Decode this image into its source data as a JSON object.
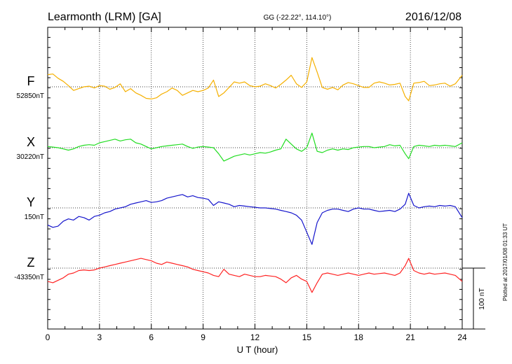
{
  "header": {
    "station": "Learmonth (LRM)  [GA]",
    "coords": "GG (-22.22°, 114.10°)",
    "date": "2016/12/08"
  },
  "footer": {
    "plotted_note": "Plotted at 2017/01/08 01:33 UT",
    "scale_label": "100 nT"
  },
  "chart_data": {
    "type": "line",
    "xlabel": "U T (hour)",
    "xlim": [
      0,
      24
    ],
    "xticks": [
      0,
      3,
      6,
      9,
      12,
      15,
      18,
      21,
      24
    ],
    "scale_nT": 100,
    "series": [
      {
        "name": "F",
        "baseline_label": "52850nT",
        "baseline_nT": 52850,
        "color": "#f5b000",
        "x": [
          0.0,
          0.3,
          0.6,
          0.9,
          1.2,
          1.5,
          1.8,
          2.1,
          2.4,
          2.7,
          3.0,
          3.3,
          3.6,
          3.9,
          4.2,
          4.5,
          4.8,
          5.1,
          5.4,
          5.7,
          6.0,
          6.3,
          6.6,
          6.9,
          7.2,
          7.5,
          7.8,
          8.1,
          8.4,
          8.7,
          9.0,
          9.3,
          9.6,
          9.9,
          10.2,
          10.5,
          10.8,
          11.1,
          11.4,
          11.7,
          12.0,
          12.3,
          12.6,
          12.9,
          13.2,
          13.5,
          13.8,
          14.1,
          14.4,
          14.7,
          15.0,
          15.3,
          15.6,
          15.9,
          16.2,
          16.5,
          16.8,
          17.1,
          17.4,
          17.7,
          18.0,
          18.3,
          18.6,
          18.9,
          19.2,
          19.5,
          19.8,
          20.1,
          20.4,
          20.7,
          20.9,
          21.2,
          21.5,
          21.8,
          22.1,
          22.4,
          22.7,
          23.0,
          23.3,
          23.6,
          24.0
        ],
        "values": [
          20,
          21,
          14,
          9,
          2,
          -6,
          -3,
          0,
          1,
          -2,
          2,
          1,
          -4,
          -1,
          5,
          -8,
          -3,
          -10,
          -14,
          -19,
          -20,
          -18,
          -12,
          -8,
          -2,
          -6,
          -14,
          -10,
          -6,
          -8,
          -6,
          -2,
          11,
          -16,
          -10,
          -1,
          8,
          6,
          8,
          2,
          0,
          1,
          5,
          2,
          -2,
          4,
          11,
          19,
          5,
          -1,
          8,
          48,
          24,
          -1,
          -4,
          -1,
          -5,
          3,
          7,
          5,
          2,
          -1,
          -1,
          6,
          8,
          6,
          3,
          4,
          6,
          -16,
          -23,
          6,
          7,
          9,
          2,
          3,
          5,
          6,
          1,
          5,
          19
        ]
      },
      {
        "name": "X",
        "baseline_label": "30220nT",
        "baseline_nT": 30220,
        "color": "#22dd22",
        "x": [
          0.0,
          0.3,
          0.6,
          0.9,
          1.2,
          1.5,
          1.8,
          2.1,
          2.4,
          2.7,
          3.0,
          3.3,
          3.6,
          3.9,
          4.2,
          4.5,
          4.8,
          5.1,
          5.4,
          5.7,
          6.0,
          6.3,
          6.6,
          6.9,
          7.2,
          7.5,
          7.8,
          8.1,
          8.4,
          8.7,
          9.0,
          9.3,
          9.6,
          9.9,
          10.2,
          10.5,
          10.8,
          11.1,
          11.4,
          11.7,
          12.0,
          12.3,
          12.6,
          12.9,
          13.2,
          13.5,
          13.8,
          14.1,
          14.4,
          14.7,
          15.0,
          15.3,
          15.6,
          15.9,
          16.2,
          16.5,
          16.8,
          17.1,
          17.4,
          17.7,
          18.0,
          18.3,
          18.6,
          18.9,
          19.2,
          19.5,
          19.8,
          20.1,
          20.4,
          20.7,
          20.9,
          21.2,
          21.5,
          21.8,
          22.1,
          22.4,
          22.7,
          23.0,
          23.3,
          23.6,
          24.0
        ],
        "values": [
          2,
          1,
          0,
          -2,
          -4,
          -2,
          2,
          4,
          5,
          4,
          8,
          10,
          12,
          14,
          11,
          13,
          14,
          8,
          6,
          2,
          -2,
          0,
          2,
          3,
          4,
          5,
          6,
          2,
          -1,
          1,
          2,
          1,
          0,
          -10,
          -22,
          -18,
          -14,
          -12,
          -10,
          -12,
          -10,
          -8,
          -9,
          -7,
          -4,
          -2,
          14,
          6,
          -2,
          -6,
          0,
          24,
          -6,
          -8,
          -4,
          -2,
          -4,
          -2,
          -3,
          0,
          1,
          2,
          2,
          0,
          1,
          2,
          5,
          3,
          4,
          -10,
          -18,
          2,
          4,
          3,
          2,
          4,
          3,
          4,
          3,
          2,
          8
        ]
      },
      {
        "name": "Y",
        "baseline_label": "150nT",
        "baseline_nT": 150,
        "color": "#1515cc",
        "x": [
          0.0,
          0.3,
          0.6,
          0.9,
          1.2,
          1.5,
          1.8,
          2.1,
          2.4,
          2.7,
          3.0,
          3.3,
          3.6,
          3.9,
          4.2,
          4.5,
          4.8,
          5.1,
          5.4,
          5.7,
          6.0,
          6.3,
          6.6,
          6.9,
          7.2,
          7.5,
          7.8,
          8.1,
          8.4,
          8.7,
          9.0,
          9.3,
          9.6,
          9.9,
          10.2,
          10.5,
          10.8,
          11.1,
          11.4,
          11.7,
          12.0,
          12.3,
          12.6,
          12.9,
          13.2,
          13.5,
          13.8,
          14.1,
          14.4,
          14.7,
          15.0,
          15.3,
          15.6,
          15.9,
          16.2,
          16.5,
          16.8,
          17.1,
          17.4,
          17.7,
          18.0,
          18.3,
          18.6,
          18.9,
          19.2,
          19.5,
          19.8,
          20.1,
          20.4,
          20.7,
          20.9,
          21.2,
          21.5,
          21.8,
          22.1,
          22.4,
          22.7,
          23.0,
          23.3,
          23.6,
          24.0
        ],
        "values": [
          -28,
          -32,
          -30,
          -22,
          -18,
          -20,
          -14,
          -16,
          -20,
          -14,
          -12,
          -8,
          -6,
          -2,
          0,
          2,
          6,
          8,
          10,
          12,
          9,
          10,
          12,
          16,
          18,
          20,
          22,
          18,
          20,
          17,
          16,
          14,
          4,
          10,
          8,
          6,
          2,
          4,
          3,
          2,
          1,
          0,
          0,
          -1,
          -2,
          -4,
          -6,
          -8,
          -12,
          -20,
          -40,
          -60,
          -24,
          -8,
          -4,
          -2,
          -2,
          -4,
          -6,
          -2,
          0,
          -2,
          -2,
          -4,
          -6,
          -5,
          -4,
          -6,
          -2,
          6,
          24,
          4,
          0,
          2,
          3,
          2,
          4,
          3,
          4,
          2,
          -16
        ]
      },
      {
        "name": "Z",
        "baseline_label": "-43350nT",
        "baseline_nT": -43350,
        "color": "#ff2222",
        "x": [
          0.0,
          0.3,
          0.6,
          0.9,
          1.2,
          1.5,
          1.8,
          2.1,
          2.4,
          2.7,
          3.0,
          3.3,
          3.6,
          3.9,
          4.2,
          4.5,
          4.8,
          5.1,
          5.4,
          5.7,
          6.0,
          6.3,
          6.6,
          6.9,
          7.2,
          7.5,
          7.8,
          8.1,
          8.4,
          8.7,
          9.0,
          9.3,
          9.6,
          9.9,
          10.2,
          10.5,
          10.8,
          11.1,
          11.4,
          11.7,
          12.0,
          12.3,
          12.6,
          12.9,
          13.2,
          13.5,
          13.8,
          14.1,
          14.4,
          14.7,
          15.0,
          15.3,
          15.6,
          15.9,
          16.2,
          16.5,
          16.8,
          17.1,
          17.4,
          17.7,
          18.0,
          18.3,
          18.6,
          18.9,
          19.2,
          19.5,
          19.8,
          20.1,
          20.4,
          20.7,
          20.9,
          21.2,
          21.5,
          21.8,
          22.1,
          22.4,
          22.7,
          23.0,
          23.3,
          23.6,
          24.0
        ],
        "values": [
          -22,
          -24,
          -20,
          -16,
          -10,
          -8,
          -4,
          -3,
          -4,
          -3,
          0,
          2,
          4,
          6,
          8,
          10,
          12,
          14,
          16,
          14,
          12,
          8,
          6,
          10,
          8,
          6,
          4,
          2,
          -2,
          -4,
          -6,
          -8,
          -12,
          -14,
          -2,
          -10,
          -12,
          -14,
          -10,
          -12,
          -14,
          -14,
          -12,
          -13,
          -14,
          -18,
          -24,
          -16,
          -12,
          -18,
          -22,
          -40,
          -24,
          -10,
          -8,
          -10,
          -12,
          -10,
          -8,
          -10,
          -12,
          -10,
          -8,
          -10,
          -9,
          -8,
          -10,
          -12,
          -8,
          4,
          16,
          -4,
          -8,
          -10,
          -8,
          -10,
          -9,
          -8,
          -10,
          -12,
          -22
        ]
      }
    ]
  }
}
